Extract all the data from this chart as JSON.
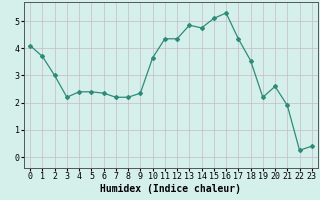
{
  "x": [
    0,
    1,
    2,
    3,
    4,
    5,
    6,
    7,
    8,
    9,
    10,
    11,
    12,
    13,
    14,
    15,
    16,
    17,
    18,
    19,
    20,
    21,
    22,
    23
  ],
  "y": [
    4.1,
    3.7,
    3.0,
    2.2,
    2.4,
    2.4,
    2.35,
    2.2,
    2.2,
    2.35,
    3.65,
    4.35,
    4.35,
    4.85,
    4.75,
    5.1,
    5.3,
    4.35,
    3.55,
    2.2,
    2.6,
    1.9,
    0.25,
    0.4
  ],
  "line_color": "#2e8b7a",
  "marker": "D",
  "marker_size": 2,
  "bg_color": "#d5f0eb",
  "grid_color": "#c8b8c8",
  "xlabel": "Humidex (Indice chaleur)",
  "xlabel_fontsize": 7,
  "tick_fontsize": 6,
  "ylim": [
    -0.4,
    5.7
  ],
  "xlim": [
    -0.5,
    23.5
  ],
  "yticks": [
    0,
    1,
    2,
    3,
    4,
    5
  ],
  "xticks": [
    0,
    1,
    2,
    3,
    4,
    5,
    6,
    7,
    8,
    9,
    10,
    11,
    12,
    13,
    14,
    15,
    16,
    17,
    18,
    19,
    20,
    21,
    22,
    23
  ]
}
